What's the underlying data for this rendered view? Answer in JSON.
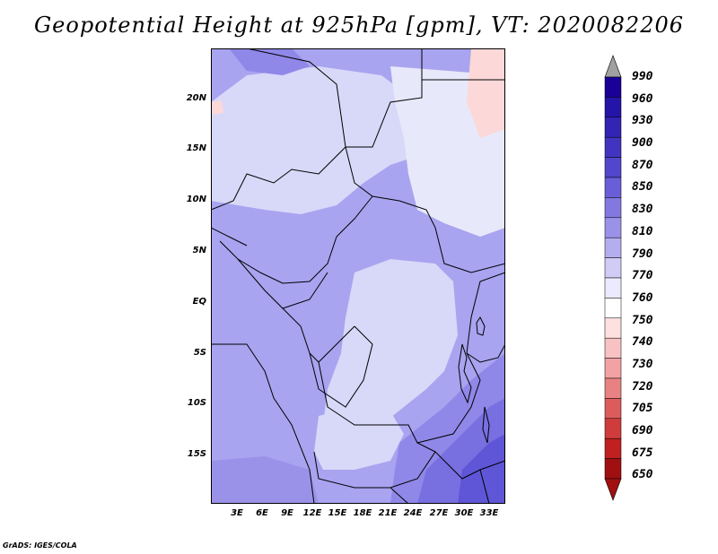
{
  "title": "Geopotential Height at 925hPa [gpm], VT: 2020082206",
  "credit": "GrADS: IGES/COLA",
  "map": {
    "lat_labels": [
      "20N",
      "15N",
      "10N",
      "5N",
      "EQ",
      "5S",
      "10S",
      "15S"
    ],
    "lon_labels": [
      "3E",
      "6E",
      "9E",
      "12E",
      "15E",
      "18E",
      "21E",
      "24E",
      "27E",
      "30E",
      "33E"
    ],
    "colors": {
      "background": "#a8a4f0",
      "light_lavender": "#d8d8f8",
      "pale": "#e8e8fb",
      "deep": "#8f88e8",
      "deeper": "#7870e0",
      "deepest": "#5e56d6",
      "pink": "#fcd8d8",
      "border_line": "#000000"
    }
  },
  "colorbar": {
    "labels": [
      "990",
      "960",
      "930",
      "900",
      "870",
      "850",
      "830",
      "810",
      "790",
      "770",
      "760",
      "750",
      "740",
      "730",
      "720",
      "705",
      "690",
      "675",
      "650"
    ],
    "colors": [
      "#1a0096",
      "#2414a8",
      "#3324b4",
      "#4234c0",
      "#5246cc",
      "#6a5ed8",
      "#8278e0",
      "#9a92e8",
      "#b4aef0",
      "#d0ccf6",
      "#eceaff",
      "#ffffff",
      "#fde0e0",
      "#f8c2c2",
      "#f2a2a2",
      "#e88282",
      "#dc5c5c",
      "#cf3c3c",
      "#c02020",
      "#a01010"
    ]
  }
}
